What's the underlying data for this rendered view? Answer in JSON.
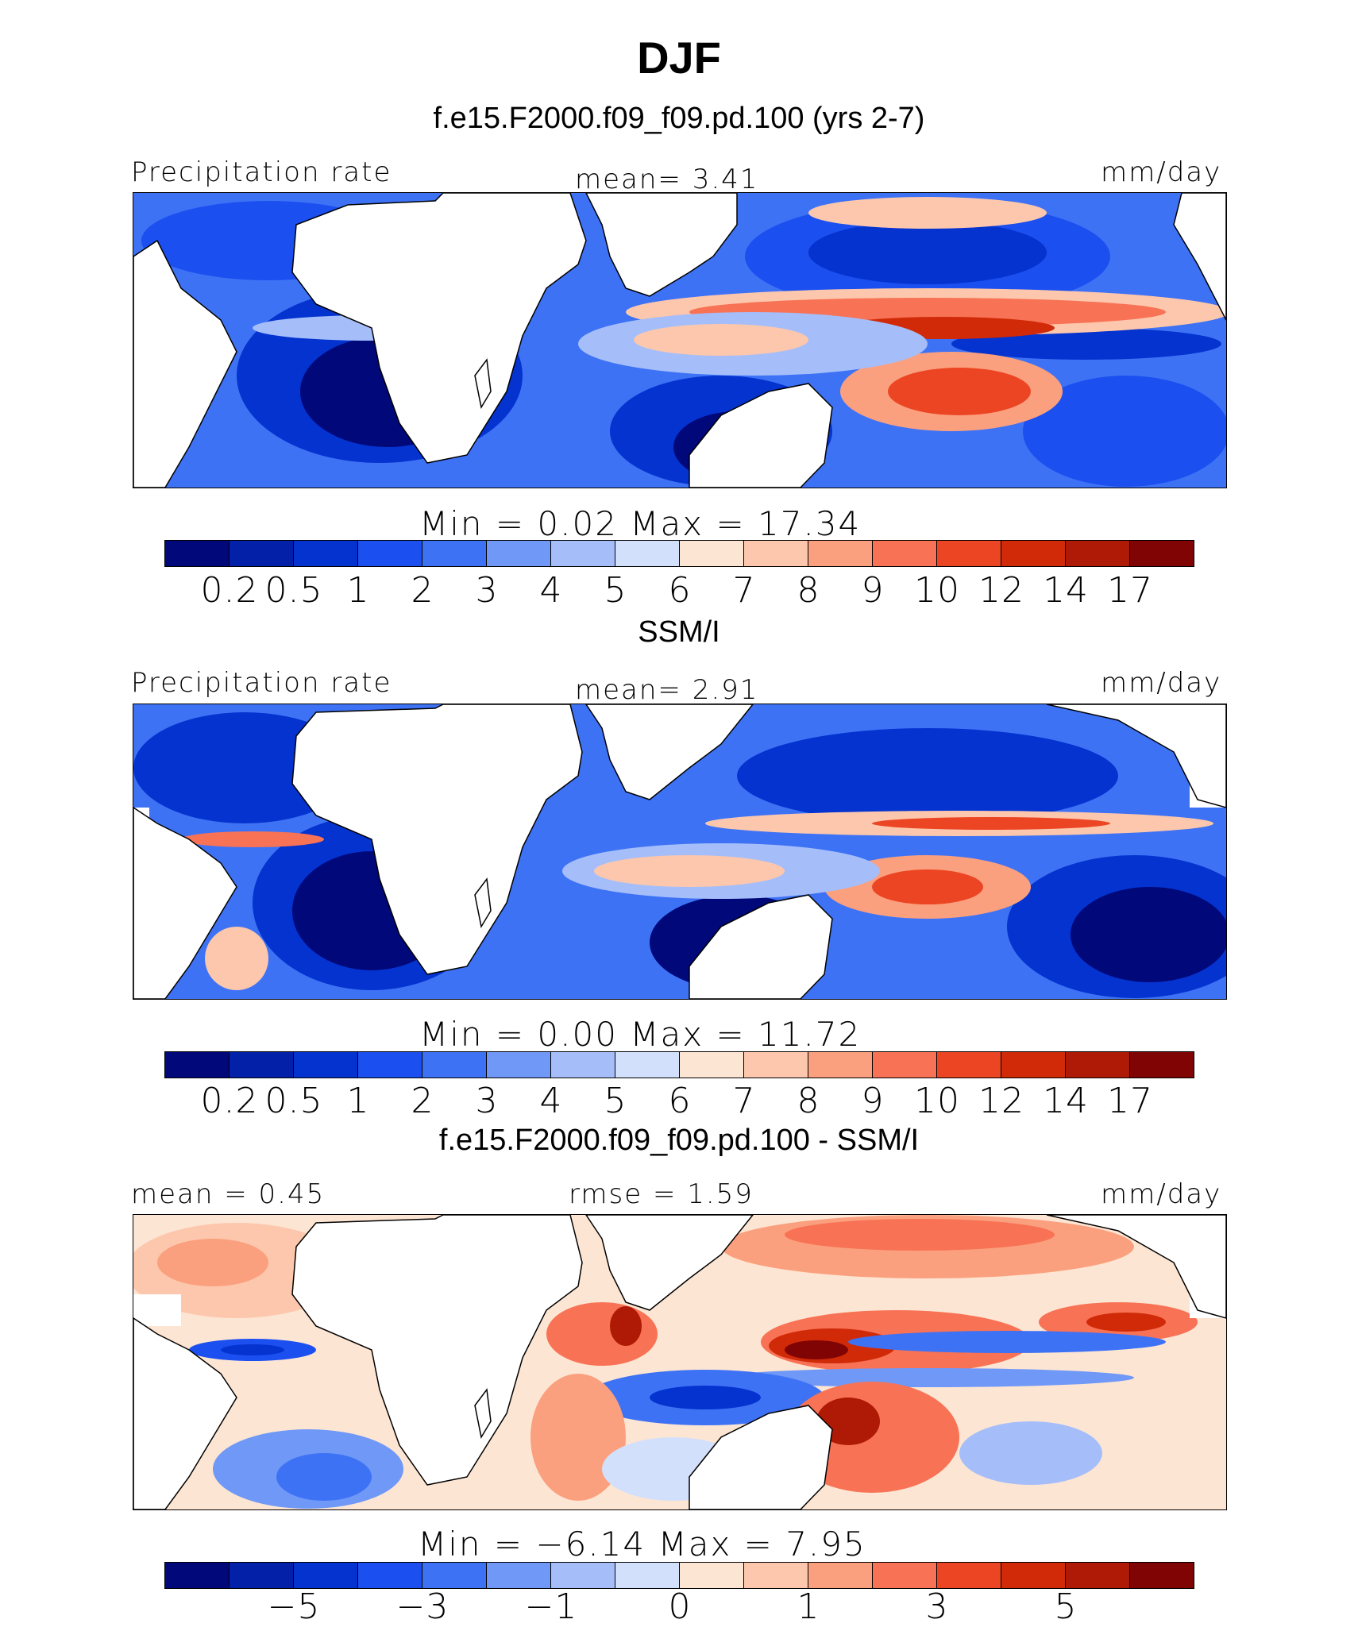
{
  "title": "DJF",
  "panels": [
    {
      "subtitle": "f.e15.F2000.f09_f09.pd.100 (yrs 2-7)",
      "left_label": "Precipitation  rate",
      "center_label": "mean=    3.41",
      "units": "mm/day",
      "min_max": "Min  =      0.02  Max  =    17.34",
      "colorbar_labels": [
        "0.2",
        "0.5",
        "1",
        "2",
        "3",
        "4",
        "5",
        "6",
        "7",
        "8",
        "9",
        "10",
        "12",
        "14",
        "17"
      ]
    },
    {
      "subtitle": "SSM/I",
      "left_label": "Precipitation  rate",
      "center_label": "mean=    2.91",
      "units": "mm/day",
      "min_max": "Min  =      0.00  Max  =    11.72",
      "colorbar_labels": [
        "0.2",
        "0.5",
        "1",
        "2",
        "3",
        "4",
        "5",
        "6",
        "7",
        "8",
        "9",
        "10",
        "12",
        "14",
        "17"
      ]
    },
    {
      "subtitle": "f.e15.F2000.f09_f09.pd.100 - SSM/I",
      "left_label": "mean  =     0.45",
      "center_label": "rmse  =     1.59",
      "units": "mm/day",
      "min_max": "Min  =    −6.14  Max  =     7.95",
      "colorbar_labels": [
        "−5",
        "−3",
        "−1",
        "0",
        "1",
        "3",
        "5"
      ]
    }
  ],
  "colors": {
    "precip_scale": [
      "#00087a",
      "#0220a8",
      "#0433d0",
      "#1b4ff0",
      "#3e72f5",
      "#6f98f7",
      "#a5befa",
      "#d2e0fb",
      "#fde5d3",
      "#fcc7ac",
      "#fba07e",
      "#f87255",
      "#ec4524",
      "#d02a08",
      "#ae1a05",
      "#800404"
    ],
    "diff_scale": [
      "#00087a",
      "#0220a8",
      "#0433d0",
      "#1b4ff0",
      "#3e72f5",
      "#6f98f7",
      "#a5befa",
      "#d2e0fb",
      "#fde5d3",
      "#fcc7ac",
      "#fba07e",
      "#f87255",
      "#ec4524",
      "#d02a08",
      "#ae1a05",
      "#800404"
    ]
  }
}
